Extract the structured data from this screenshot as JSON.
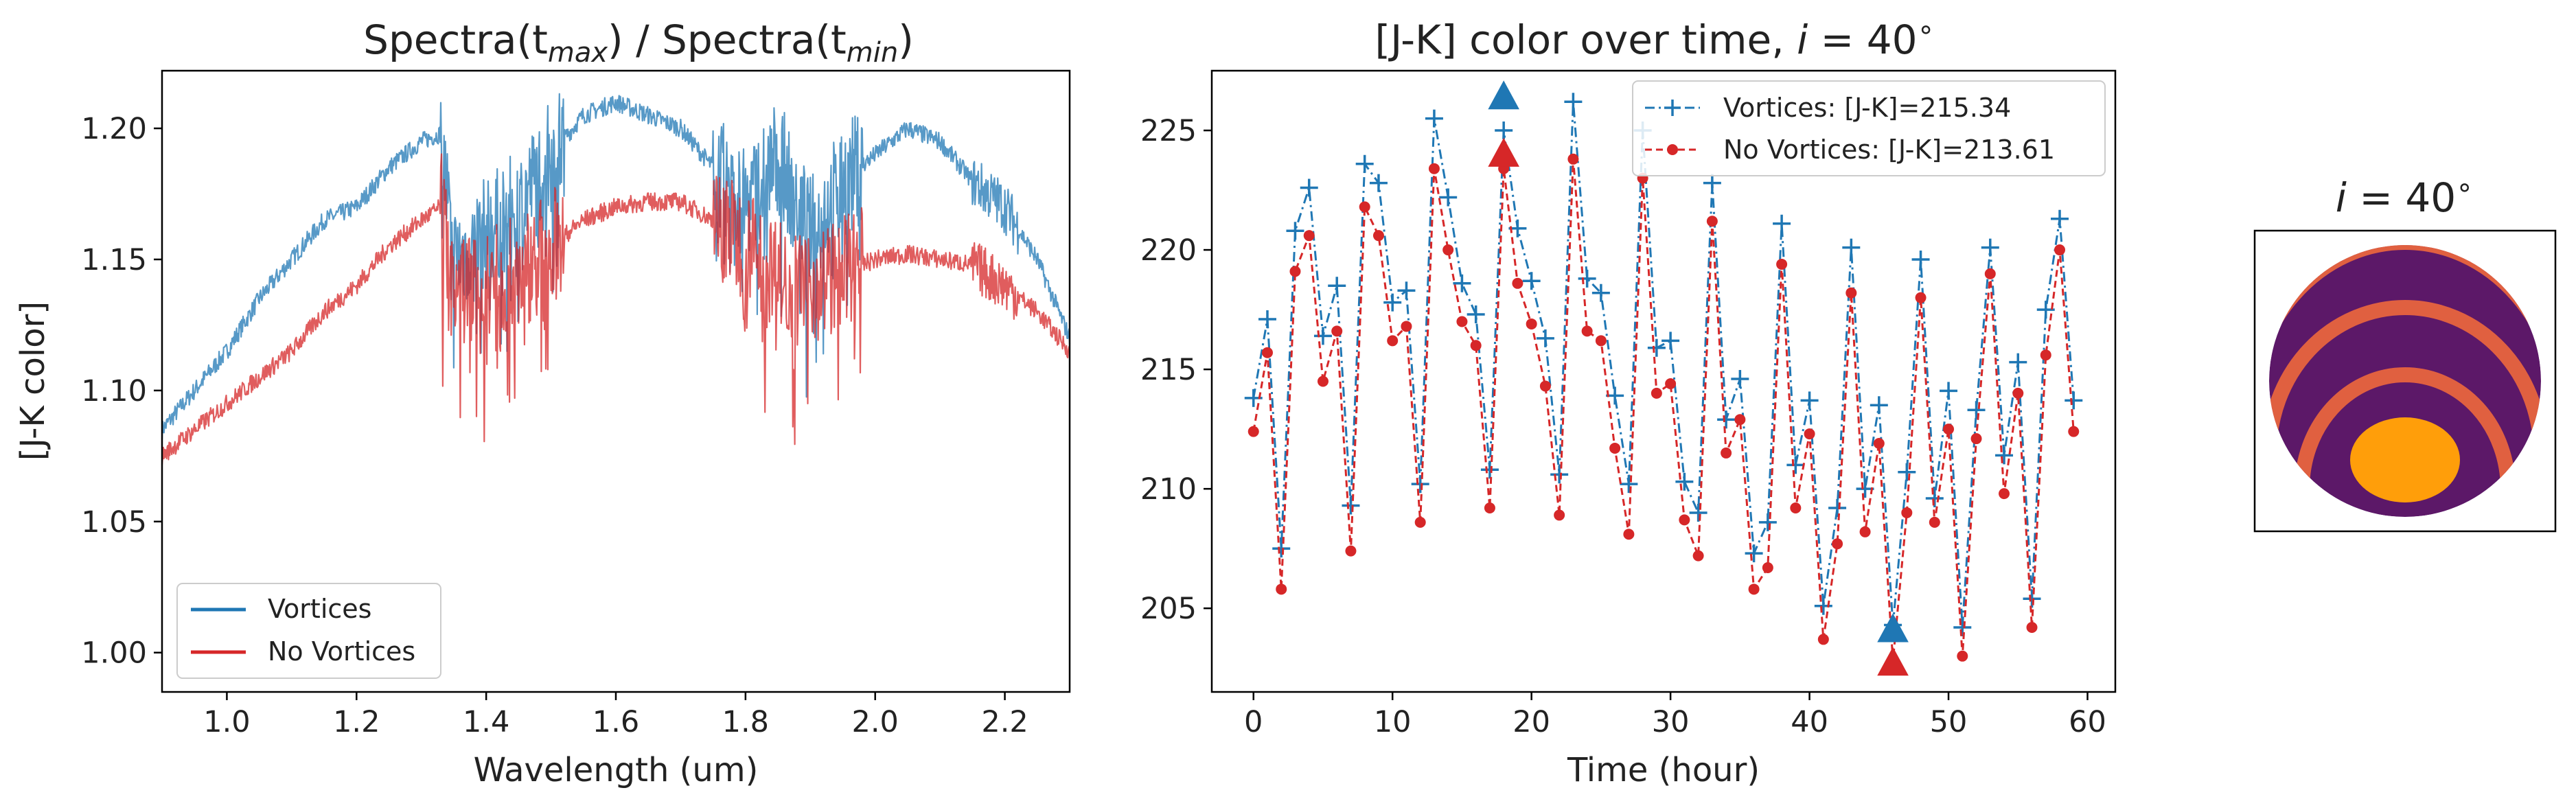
{
  "colors": {
    "vortices": "#1f77b4",
    "no_vortices": "#d62728",
    "planet_bg": "#5c1868",
    "band": "#e06040",
    "spot": "#ff9e0a"
  },
  "chart_data": [
    {
      "type": "line",
      "title_main": "Spectra(t",
      "title_sub1": "max",
      "title_mid": ") / Spectra(t",
      "title_sub2": "min",
      "title_end": ")",
      "xlabel": "Wavelength (um)",
      "ylabel": "[J-K color]",
      "xlim": [
        0.9,
        2.3
      ],
      "ylim": [
        0.985,
        1.222
      ],
      "xticks": [
        1.0,
        1.2,
        1.4,
        1.6,
        1.8,
        2.0,
        2.2
      ],
      "xtick_labels": [
        "1.0",
        "1.2",
        "1.4",
        "1.6",
        "1.8",
        "2.0",
        "2.2"
      ],
      "yticks": [
        1.0,
        1.05,
        1.1,
        1.15,
        1.2
      ],
      "ytick_labels": [
        "1.00",
        "1.05",
        "1.10",
        "1.15",
        "1.20"
      ],
      "legend_position": "lower-left",
      "series": [
        {
          "name": "Vortices",
          "anchors_x": [
            0.9,
            0.95,
            1.0,
            1.05,
            1.1,
            1.15,
            1.2,
            1.25,
            1.3,
            1.33,
            1.35,
            1.4,
            1.45,
            1.5,
            1.55,
            1.6,
            1.65,
            1.7,
            1.75,
            1.8,
            1.85,
            1.9,
            1.95,
            2.0,
            2.05,
            2.1,
            2.15,
            2.2,
            2.25,
            2.3
          ],
          "anchors_y": [
            1.085,
            1.1,
            1.115,
            1.135,
            1.15,
            1.165,
            1.17,
            1.185,
            1.195,
            1.198,
            1.15,
            1.16,
            1.17,
            1.19,
            1.205,
            1.21,
            1.205,
            1.2,
            1.185,
            1.17,
            1.19,
            1.16,
            1.18,
            1.19,
            1.2,
            1.195,
            1.18,
            1.17,
            1.15,
            1.12
          ]
        },
        {
          "name": "No Vortices",
          "anchors_x": [
            0.9,
            0.95,
            1.0,
            1.05,
            1.1,
            1.15,
            1.2,
            1.25,
            1.3,
            1.33,
            1.35,
            1.4,
            1.45,
            1.5,
            1.55,
            1.6,
            1.65,
            1.7,
            1.75,
            1.8,
            1.85,
            1.9,
            1.95,
            2.0,
            2.05,
            2.1,
            2.15,
            2.2,
            2.25,
            2.3
          ],
          "anchors_y": [
            1.075,
            1.085,
            1.095,
            1.105,
            1.115,
            1.13,
            1.14,
            1.155,
            1.165,
            1.17,
            1.14,
            1.14,
            1.145,
            1.155,
            1.165,
            1.17,
            1.172,
            1.172,
            1.165,
            1.155,
            1.145,
            1.14,
            1.145,
            1.15,
            1.152,
            1.15,
            1.148,
            1.14,
            1.13,
            1.115
          ]
        }
      ]
    },
    {
      "type": "line",
      "title_main": "[J-K] color over time, ",
      "title_i": "i",
      "title_end": " = 40",
      "title_deg": "∘",
      "xlabel": "Time (hour)",
      "xlim": [
        -3,
        62
      ],
      "ylim": [
        201.5,
        227.5
      ],
      "xticks": [
        0,
        10,
        20,
        30,
        40,
        50,
        60
      ],
      "xtick_labels": [
        "0",
        "10",
        "20",
        "30",
        "40",
        "50",
        "60"
      ],
      "yticks": [
        205,
        210,
        215,
        220,
        225
      ],
      "ytick_labels": [
        "205",
        "210",
        "215",
        "220",
        "225"
      ],
      "legend_position": "top-right",
      "x": [
        0,
        1,
        2,
        3,
        4,
        5,
        6,
        7,
        8,
        9,
        10,
        11,
        12,
        13,
        14,
        15,
        16,
        17,
        18,
        19,
        20,
        21,
        22,
        23,
        24,
        25,
        26,
        27,
        28,
        29,
        30,
        31,
        32,
        33,
        34,
        35,
        36,
        37,
        38,
        39,
        40,
        41,
        42,
        43,
        44,
        45,
        46,
        47,
        48,
        49,
        50,
        51,
        52,
        53,
        54,
        55,
        56,
        57,
        58,
        59
      ],
      "series": [
        {
          "name": "Vortices",
          "label": "Vortices: [J-K]=215.34",
          "values": [
            213.8,
            217.1,
            207.5,
            220.8,
            222.6,
            216.4,
            218.5,
            209.3,
            223.6,
            222.8,
            217.8,
            218.3,
            210.2,
            225.5,
            222.2,
            218.6,
            217.3,
            210.8,
            225.0,
            220.9,
            218.7,
            216.3,
            210.6,
            226.2,
            218.8,
            218.2,
            213.9,
            210.2,
            225.0,
            215.9,
            216.2,
            210.3,
            209.0,
            222.8,
            212.9,
            214.6,
            207.3,
            208.6,
            221.1,
            211.0,
            213.7,
            205.1,
            209.2,
            220.1,
            210.0,
            213.5,
            204.3,
            210.7,
            219.6,
            209.6,
            214.1,
            204.2,
            213.3,
            220.1,
            211.4,
            215.3,
            205.4,
            217.5,
            221.3,
            213.7
          ]
        },
        {
          "name": "No Vortices",
          "label": "No Vortices: [J-K]=213.61",
          "values": [
            212.4,
            215.7,
            205.8,
            219.1,
            220.6,
            214.5,
            216.6,
            207.4,
            221.8,
            220.6,
            216.2,
            216.8,
            208.6,
            223.4,
            220.0,
            217.0,
            216.0,
            209.2,
            223.4,
            218.6,
            216.9,
            214.3,
            208.9,
            223.8,
            216.6,
            216.2,
            211.7,
            208.1,
            223.0,
            214.0,
            214.4,
            208.7,
            207.2,
            221.2,
            211.5,
            212.9,
            205.8,
            206.7,
            219.4,
            209.2,
            212.3,
            203.7,
            207.7,
            218.2,
            208.2,
            211.9,
            202.8,
            209.0,
            218.0,
            208.6,
            212.5,
            203.0,
            212.1,
            219.0,
            209.8,
            214.0,
            204.2,
            215.6,
            220.0,
            212.4
          ]
        }
      ],
      "extrema_markers": [
        {
          "series": "Vortices",
          "x": 18,
          "y": 226.4
        },
        {
          "series": "No Vortices",
          "x": 18,
          "y": 224.0
        },
        {
          "series": "Vortices",
          "x": 46,
          "y": 204.1
        },
        {
          "series": "No Vortices",
          "x": 46,
          "y": 202.7
        }
      ]
    }
  ],
  "planet": {
    "title_i": "i",
    "title_end": " = 40",
    "title_deg": "∘"
  }
}
